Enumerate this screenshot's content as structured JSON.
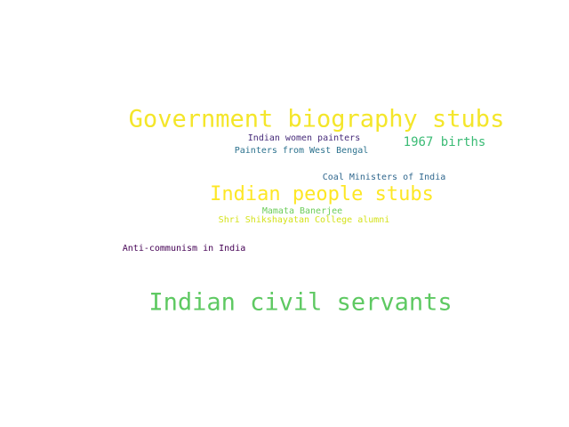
{
  "word_cloud": {
    "words": [
      {
        "text": "Government biography stubs",
        "color": "#f4e62a"
      },
      {
        "text": "Indian women painters",
        "color": "#472c7a"
      },
      {
        "text": "1967 births",
        "color": "#3bbb75"
      },
      {
        "text": "Painters from West Bengal",
        "color": "#2c728e"
      },
      {
        "text": "Coal Ministers of India",
        "color": "#31688e"
      },
      {
        "text": "Indian people stubs",
        "color": "#fde725"
      },
      {
        "text": "Mamata Banerjee",
        "color": "#6ccd5a"
      },
      {
        "text": "Shri Shikshayatan College alumni",
        "color": "#d4e21a"
      },
      {
        "text": "Anti-communism in India",
        "color": "#440154"
      },
      {
        "text": "Indian civil servants",
        "color": "#5ec962"
      }
    ]
  }
}
